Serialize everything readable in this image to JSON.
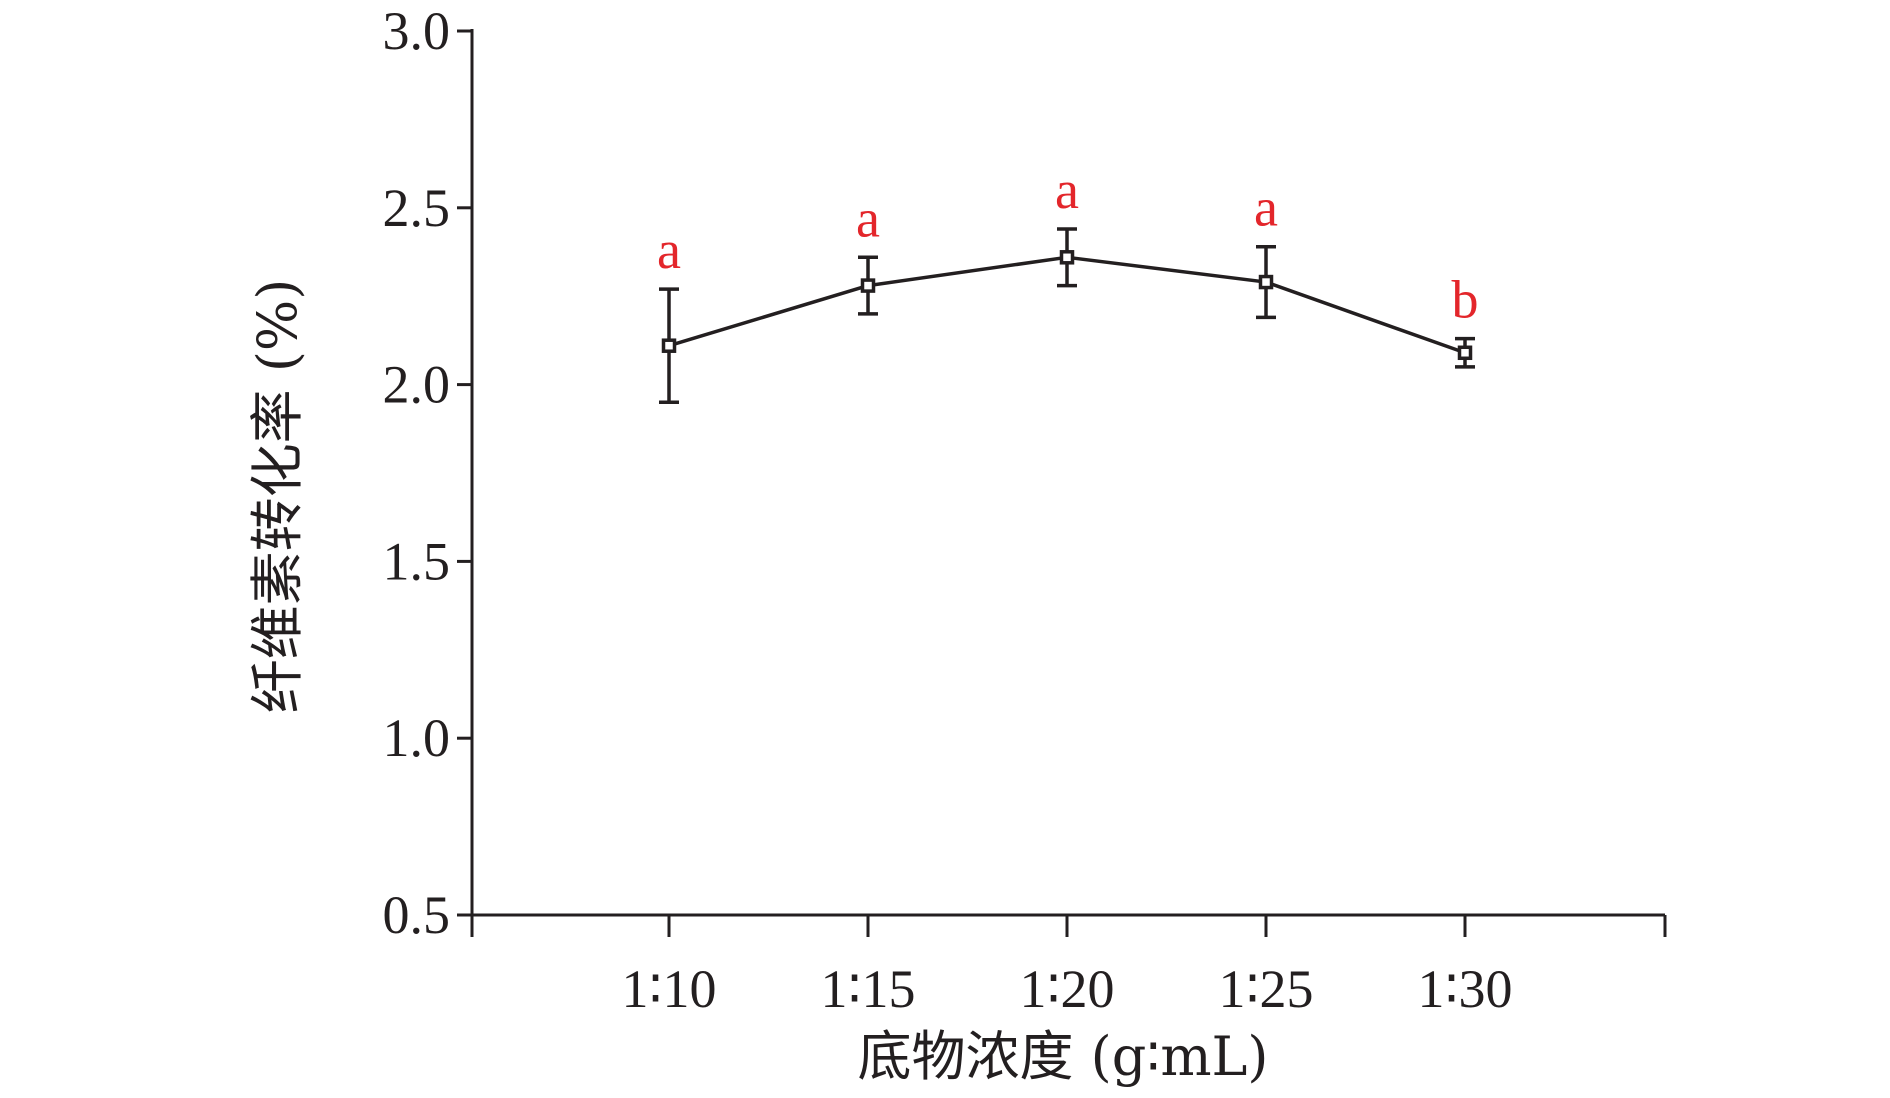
{
  "chart_data": {
    "type": "line",
    "categories": [
      "1∶10",
      "1∶15",
      "1∶20",
      "1∶25",
      "1∶30"
    ],
    "series": [
      {
        "values": [
          2.11,
          2.28,
          2.36,
          2.29,
          2.09
        ],
        "error": [
          0.16,
          0.08,
          0.08,
          0.1,
          0.04
        ],
        "significance": [
          "a",
          "a",
          "a",
          "a",
          "b"
        ]
      }
    ],
    "ylim": [
      0.5,
      3.0
    ],
    "yticks": [
      "0.5",
      "1.0",
      "1.5",
      "2.0",
      "2.5",
      "3.0"
    ],
    "ytick_values": [
      0.5,
      1.0,
      1.5,
      2.0,
      2.5,
      3.0
    ],
    "xlabel": "底物浓度 (g∶mL)",
    "ylabel": "纤维素转化率 (%)",
    "grid": false,
    "legend": "none",
    "colors": {
      "line": "#231f20",
      "significance": "#e3262b"
    }
  }
}
